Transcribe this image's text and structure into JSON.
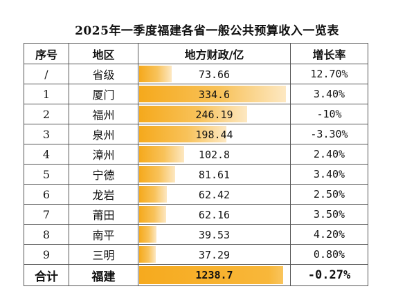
{
  "title": "2025年一季度福建各省一般公共预算收入一览表",
  "headers": [
    "序号",
    "地区",
    "地方财政/亿",
    "增长率"
  ],
  "rows": [
    {
      "no": "/",
      "region": "省级",
      "value": "73.66",
      "value_num": 73.66,
      "growth": "12.70%"
    },
    {
      "no": "1",
      "region": "厦门",
      "value": "334.6",
      "value_num": 334.6,
      "growth": "3.40%"
    },
    {
      "no": "2",
      "region": "福州",
      "value": "246.19",
      "value_num": 246.19,
      "growth": "-10%"
    },
    {
      "no": "3",
      "region": "泉州",
      "value": "198.44",
      "value_num": 198.44,
      "growth": "-3.30%"
    },
    {
      "no": "4",
      "region": "漳州",
      "value": "102.8",
      "value_num": 102.8,
      "growth": "2.40%"
    },
    {
      "no": "5",
      "region": "宁德",
      "value": "81.61",
      "value_num": 81.61,
      "growth": "3.40%"
    },
    {
      "no": "6",
      "region": "龙岩",
      "value": "62.42",
      "value_num": 62.42,
      "growth": "2.50%"
    },
    {
      "no": "7",
      "region": "莆田",
      "value": "62.16",
      "value_num": 62.16,
      "growth": "3.50%"
    },
    {
      "no": "8",
      "region": "南平",
      "value": "39.53",
      "value_num": 39.53,
      "growth": "4.20%"
    },
    {
      "no": "9",
      "region": "三明",
      "value": "37.29",
      "value_num": 37.29,
      "growth": "0.80%"
    }
  ],
  "total": {
    "label": "合计",
    "region": "福建",
    "value": "1238.7",
    "value_num": 1238.7,
    "growth": "-0.27%"
  },
  "colors": {
    "bar": "#f5a91c"
  }
}
